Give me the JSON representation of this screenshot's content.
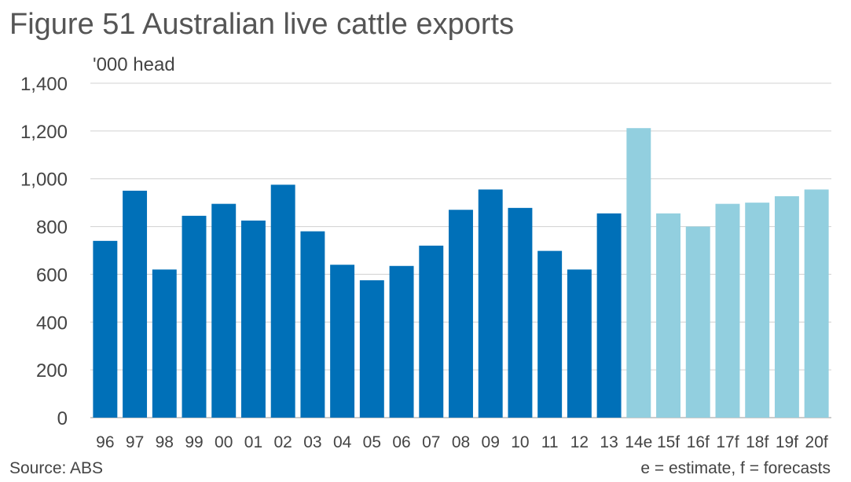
{
  "chart_data": {
    "type": "bar",
    "title": "Figure 51 Australian live cattle exports",
    "ylabel": "'000 head",
    "xlabel": "",
    "ylim": [
      0,
      1400
    ],
    "yticks": [
      "0",
      "200",
      "400",
      "600",
      "800",
      "1,000",
      "1,200",
      "1,400"
    ],
    "ytick_values": [
      0,
      200,
      400,
      600,
      800,
      1000,
      1200,
      1400
    ],
    "grid": true,
    "categories": [
      "96",
      "97",
      "98",
      "99",
      "00",
      "01",
      "02",
      "03",
      "04",
      "05",
      "06",
      "07",
      "08",
      "09",
      "10",
      "11",
      "12",
      "13",
      "14e",
      "15f",
      "16f",
      "17f",
      "18f",
      "19f",
      "20f"
    ],
    "values": [
      740,
      950,
      620,
      845,
      895,
      825,
      975,
      780,
      640,
      575,
      635,
      720,
      870,
      955,
      878,
      698,
      620,
      855,
      1212,
      855,
      800,
      895,
      900,
      927,
      955
    ],
    "bar_colors": {
      "actual": "#0070b8",
      "estimate_forecast": "#92cfdf"
    },
    "estimate_start_index": 18,
    "source": "Source:  ABS",
    "note": "e = estimate, f = forecasts"
  }
}
